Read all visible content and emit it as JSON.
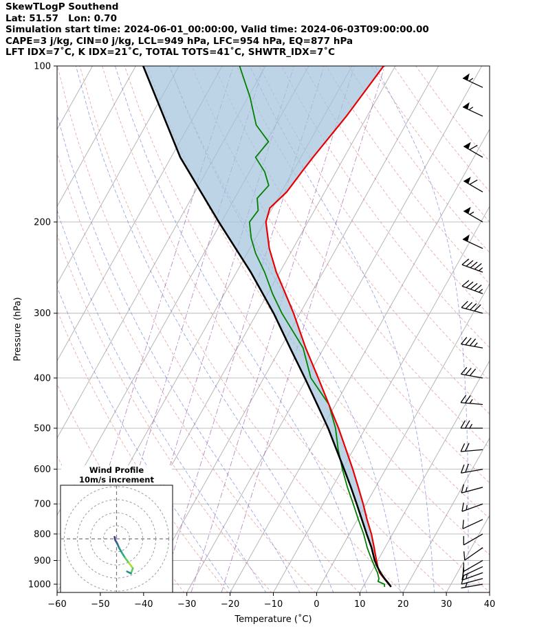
{
  "header": {
    "title": "SkewTLogP Southend",
    "coords": "Lat: 51.57   Lon: 0.70",
    "times": "Simulation start time: 2024-06-01_00:00:00, Valid time: 2024-06-03T09:00:00.00",
    "indices1": "CAPE=3 j/kg, CIN=0 j/kg, LCL=949 hPa, LFC=954 hPa, EQ=877 hPa",
    "indices2": "LFT IDX=7˚C, K IDX=21˚C, TOTAL TOTS=41˚C, SHWTR_IDX=7˚C"
  },
  "chart_data": {
    "type": "skewt-logp",
    "title": "SkewTLogP Southend",
    "xlabel": "Temperature (˚C)",
    "ylabel": "Pressure (hPa)",
    "xlim": [
      -60,
      40
    ],
    "pressure_lim": [
      100,
      1037
    ],
    "x_ticks": [
      -60,
      -50,
      -40,
      -30,
      -20,
      -10,
      0,
      10,
      20,
      30,
      40
    ],
    "x_tick_labels": [
      "−60",
      "−50",
      "−40",
      "−30",
      "−20",
      "−10",
      "0",
      "10",
      "20",
      "30",
      "40"
    ],
    "y_ticks": [
      100,
      200,
      300,
      400,
      500,
      600,
      700,
      800,
      900,
      1000
    ],
    "y_tick_labels": [
      "100",
      "200",
      "300",
      "400",
      "500",
      "600",
      "700",
      "800",
      "900",
      "1000"
    ],
    "colors": {
      "temperature": "#e60000",
      "dewpoint": "#008000",
      "parcel": "#000000",
      "shading": "#a2c4dd",
      "isotherm": "#b5b5b5",
      "grid": "#b5b5b5",
      "dry_adiabat": "#e07070",
      "moist_adiabat": "#4a5fd0",
      "mixing_ratio": "#9b59a8",
      "barb": "#000000"
    },
    "temperature_profile": [
      [
        1012,
        16.5
      ],
      [
        1000,
        15.6
      ],
      [
        975,
        13.8
      ],
      [
        950,
        12.0
      ],
      [
        925,
        10.8
      ],
      [
        900,
        9.7
      ],
      [
        875,
        8.6
      ],
      [
        850,
        7.5
      ],
      [
        800,
        5.1
      ],
      [
        750,
        2.2
      ],
      [
        700,
        -0.7
      ],
      [
        650,
        -4.0
      ],
      [
        600,
        -7.6
      ],
      [
        550,
        -11.7
      ],
      [
        500,
        -16.2
      ],
      [
        450,
        -21.5
      ],
      [
        400,
        -27.4
      ],
      [
        350,
        -34.2
      ],
      [
        300,
        -41.5
      ],
      [
        275,
        -45.9
      ],
      [
        250,
        -50.8
      ],
      [
        225,
        -55.5
      ],
      [
        200,
        -59.7
      ],
      [
        188,
        -60.6
      ],
      [
        175,
        -58.8
      ],
      [
        160,
        -57.9
      ],
      [
        150,
        -57.2
      ],
      [
        125,
        -54.8
      ],
      [
        100,
        -52.7
      ]
    ],
    "dewpoint_profile": [
      [
        1012,
        15.0
      ],
      [
        1000,
        14.6
      ],
      [
        988,
        12.8
      ],
      [
        975,
        12.6
      ],
      [
        950,
        11.5
      ],
      [
        925,
        10.1
      ],
      [
        900,
        8.7
      ],
      [
        875,
        7.3
      ],
      [
        850,
        5.9
      ],
      [
        800,
        3.3
      ],
      [
        750,
        0.2
      ],
      [
        700,
        -3.0
      ],
      [
        650,
        -6.5
      ],
      [
        600,
        -10.0
      ],
      [
        550,
        -13.5
      ],
      [
        500,
        -16.9
      ],
      [
        450,
        -21.5
      ],
      [
        400,
        -29.1
      ],
      [
        350,
        -34.8
      ],
      [
        300,
        -44.2
      ],
      [
        275,
        -48.9
      ],
      [
        250,
        -53.5
      ],
      [
        230,
        -58.0
      ],
      [
        215,
        -61.0
      ],
      [
        200,
        -63.5
      ],
      [
        190,
        -63.0
      ],
      [
        180,
        -64.8
      ],
      [
        170,
        -63.8
      ],
      [
        160,
        -66.5
      ],
      [
        150,
        -70.5
      ],
      [
        140,
        -69.5
      ],
      [
        130,
        -74.5
      ],
      [
        115,
        -79.5
      ],
      [
        100,
        -86.0
      ]
    ],
    "parcel_profile": [
      [
        1012,
        16.5
      ],
      [
        1000,
        15.7
      ],
      [
        975,
        13.9
      ],
      [
        950,
        12.2
      ],
      [
        925,
        10.7
      ],
      [
        900,
        9.3
      ],
      [
        875,
        8.1
      ],
      [
        850,
        6.9
      ],
      [
        800,
        4.0
      ],
      [
        750,
        1.0
      ],
      [
        700,
        -2.2
      ],
      [
        650,
        -5.7
      ],
      [
        600,
        -9.6
      ],
      [
        550,
        -13.9
      ],
      [
        500,
        -18.6
      ],
      [
        450,
        -24.2
      ],
      [
        400,
        -30.5
      ],
      [
        350,
        -37.8
      ],
      [
        300,
        -46.1
      ],
      [
        250,
        -56.7
      ],
      [
        200,
        -70.6
      ],
      [
        150,
        -87.9
      ],
      [
        100,
        -108.3
      ]
    ],
    "shade_below_p": 880,
    "background": {
      "isotherms": {
        "min": -120,
        "max": 40,
        "step": 10
      },
      "dry_adiabats_K": [
        230,
        240,
        250,
        260,
        270,
        280,
        290,
        300,
        310,
        320,
        330,
        340,
        350,
        360,
        370,
        380,
        390,
        400,
        410,
        420,
        430,
        440
      ],
      "moist_adiabats_C": [
        -22,
        -14,
        -6,
        2,
        10,
        18,
        26,
        34
      ],
      "mixing_ratio_lines": {
        "slope": 0.31,
        "bottom_temps": [
          -57,
          -50,
          -43,
          -36,
          -29,
          -22
        ]
      }
    },
    "wind_barbs": [
      {
        "p": 110,
        "speed": 55,
        "dir": 295
      },
      {
        "p": 125,
        "speed": 55,
        "dir": 295
      },
      {
        "p": 150,
        "speed": 60,
        "dir": 300
      },
      {
        "p": 175,
        "speed": 60,
        "dir": 300
      },
      {
        "p": 200,
        "speed": 55,
        "dir": 300
      },
      {
        "p": 225,
        "speed": 50,
        "dir": 295
      },
      {
        "p": 250,
        "speed": 45,
        "dir": 290
      },
      {
        "p": 275,
        "speed": 45,
        "dir": 290
      },
      {
        "p": 300,
        "speed": 40,
        "dir": 285
      },
      {
        "p": 350,
        "speed": 35,
        "dir": 280
      },
      {
        "p": 400,
        "speed": 30,
        "dir": 280
      },
      {
        "p": 450,
        "speed": 25,
        "dir": 275
      },
      {
        "p": 500,
        "speed": 25,
        "dir": 270
      },
      {
        "p": 550,
        "speed": 20,
        "dir": 265
      },
      {
        "p": 600,
        "speed": 20,
        "dir": 260
      },
      {
        "p": 650,
        "speed": 15,
        "dir": 255
      },
      {
        "p": 700,
        "speed": 15,
        "dir": 250
      },
      {
        "p": 750,
        "speed": 10,
        "dir": 245
      },
      {
        "p": 800,
        "speed": 10,
        "dir": 240
      },
      {
        "p": 850,
        "speed": 10,
        "dir": 235
      },
      {
        "p": 900,
        "speed": 10,
        "dir": 240
      },
      {
        "p": 925,
        "speed": 10,
        "dir": 245
      },
      {
        "p": 950,
        "speed": 15,
        "dir": 250
      },
      {
        "p": 975,
        "speed": 10,
        "dir": 255
      },
      {
        "p": 1000,
        "speed": 5,
        "dir": 260
      }
    ],
    "inset": {
      "title1": "Wind Profile",
      "title2": "10m/s increment",
      "ring_interval_ms": 10,
      "rings_ms": [
        10,
        20,
        30,
        40
      ],
      "points": [
        {
          "u": -1.5,
          "v": 1.5,
          "c": "#440154"
        },
        {
          "u": -1.0,
          "v": -1.0,
          "c": "#472d7b"
        },
        {
          "u": 0.5,
          "v": -3.5,
          "c": "#3b528b"
        },
        {
          "u": 2.0,
          "v": -7.0,
          "c": "#2c728e"
        },
        {
          "u": 4.0,
          "v": -10.5,
          "c": "#21918c"
        },
        {
          "u": 6.5,
          "v": -14.5,
          "c": "#27ad81"
        },
        {
          "u": 9.5,
          "v": -18.5,
          "c": "#5ec962"
        },
        {
          "u": 12.5,
          "v": -22.5,
          "c": "#aadc32"
        },
        {
          "u": 11.0,
          "v": -26.5,
          "c": "#5ec962"
        },
        {
          "u": 8.0,
          "v": -25.0,
          "c": "#21918c"
        }
      ]
    }
  }
}
